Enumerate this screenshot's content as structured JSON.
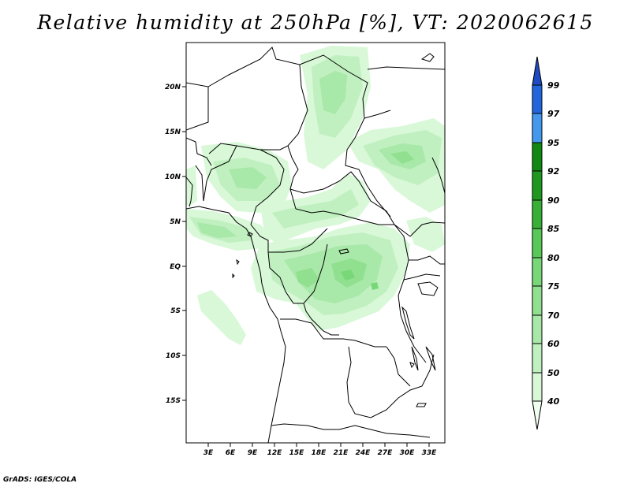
{
  "title": "Relative humidity at 250hPa [%], VT: 2020062615",
  "credit": "GrADS: IGES/COLA",
  "map": {
    "lon_range": [
      0,
      36
    ],
    "lat_range": [
      -20,
      25
    ],
    "lon_ticks": [
      "3E",
      "6E",
      "9E",
      "12E",
      "15E",
      "18E",
      "21E",
      "24E",
      "27E",
      "30E",
      "33E"
    ],
    "lat_ticks": [
      "20N",
      "15N",
      "10N",
      "5N",
      "EQ",
      "5S",
      "10S",
      "15S"
    ]
  },
  "colorbar": {
    "labels": [
      "40",
      "50",
      "60",
      "70",
      "75",
      "80",
      "85",
      "90",
      "92",
      "95",
      "97",
      "99"
    ],
    "colors": [
      "#f0fff0",
      "#d8f8d8",
      "#c0f0c0",
      "#a8e8a8",
      "#90e090",
      "#78d878",
      "#58c858",
      "#38b038",
      "#209820",
      "#118811",
      "#4499ee",
      "#2266dd",
      "#1e4bc4"
    ]
  }
}
